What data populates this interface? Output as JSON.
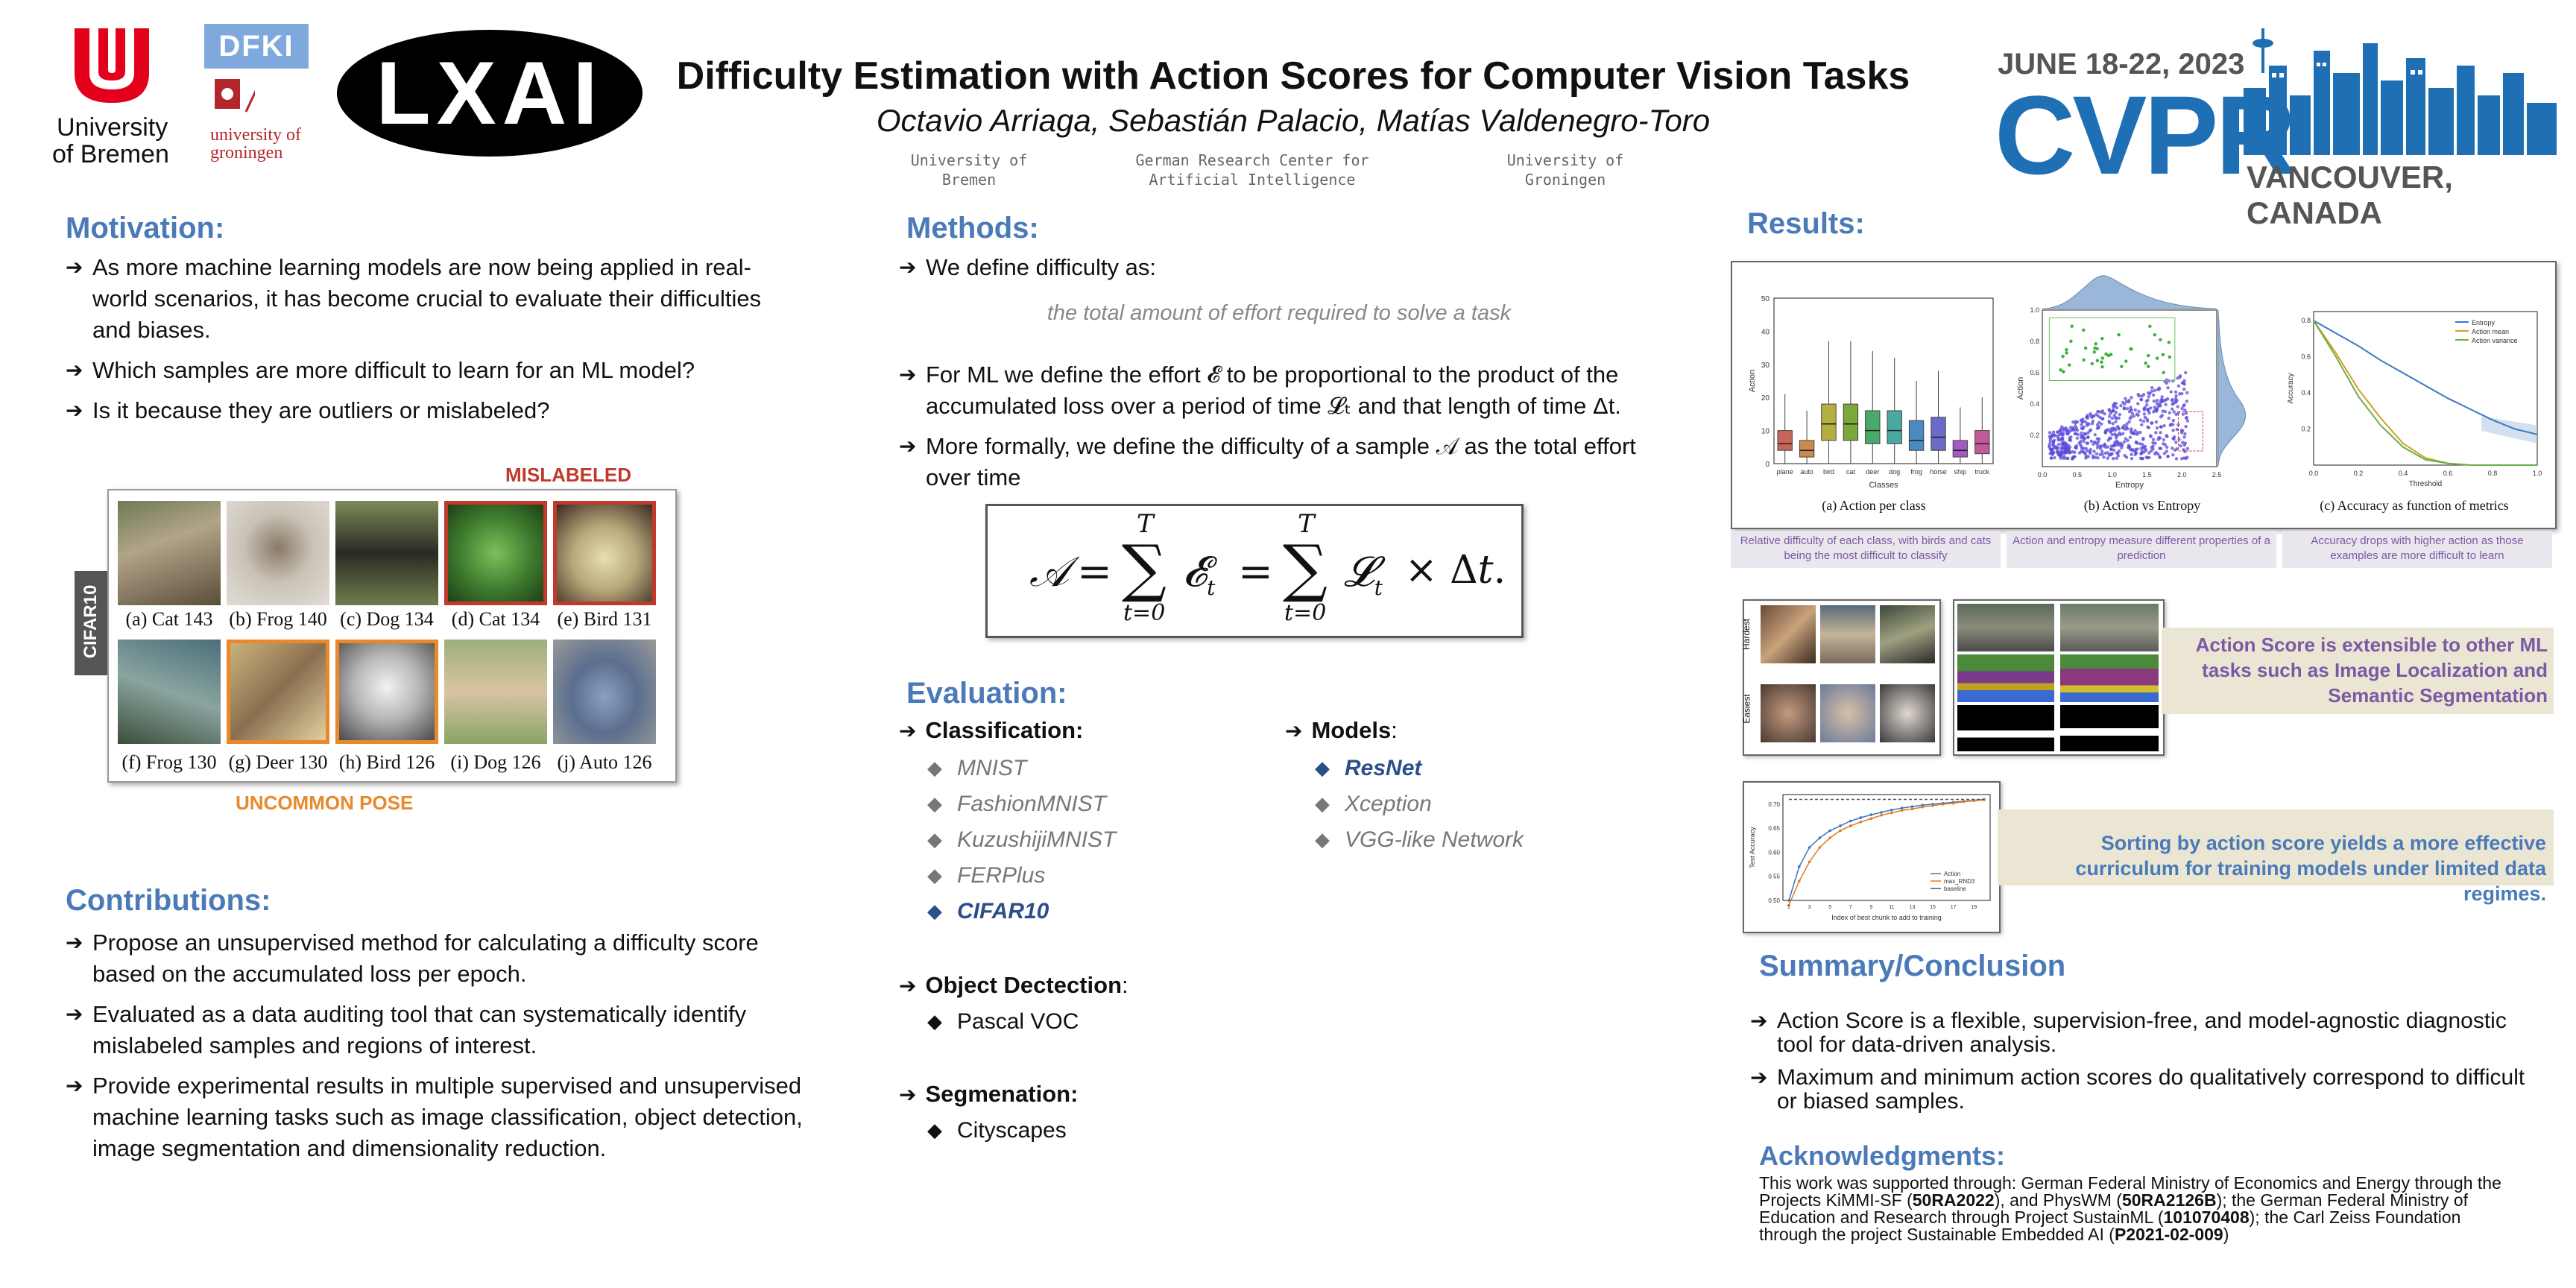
{
  "header": {
    "logos": {
      "bremen_line1": "University",
      "bremen_line2": "of Bremen",
      "groningen_line1": "university of",
      "groningen_line2": "groningen",
      "dfki": "DFKI",
      "lxai": "LXAI"
    },
    "title": "Difficulty Estimation with Action Scores for Computer Vision Tasks",
    "authors": "Octavio Arriaga, Sebastián Palacio, Matías Valdenegro-Toro",
    "affiliations": [
      {
        "line1": "University of",
        "line2": "Bremen"
      },
      {
        "line1": "German Research Center for",
        "line2": "Artificial Intelligence"
      },
      {
        "line1": "University of",
        "line2": "Groningen"
      }
    ],
    "cvpr": {
      "dates": "JUNE 18-22, 2023",
      "name": "CVPR",
      "location": "VANCOUVER, CANADA"
    }
  },
  "motivation": {
    "heading": "Motivation:",
    "bullets": [
      "As more machine learning models are now being applied in real-world scenarios, it has become crucial to evaluate their difficulties and biases.",
      "Which samples are more difficult to learn for an ML model?",
      "Is it because they are outliers or mislabeled?"
    ]
  },
  "cifar_figure": {
    "top_label": "MISLABELED",
    "bottom_label": "UNCOMMON POSE",
    "side_label": "CIFAR10",
    "captions": [
      "(a) Cat 143",
      "(b) Frog 140",
      "(c) Dog 134",
      "(d) Cat 134",
      "(e) Bird 131",
      "(f) Frog 130",
      "(g) Deer 130",
      "(h) Bird 126",
      "(i) Dog 126",
      "(j) Auto 126"
    ]
  },
  "contributions": {
    "heading": "Contributions:",
    "bullets": [
      "Propose an unsupervised method for calculating a difficulty score based on the accumulated loss per epoch.",
      "Evaluated as a data auditing tool that can systematically identify mislabeled samples and regions of interest.",
      "Provide experimental results in multiple supervised and unsupervised machine learning tasks such as image classification, object detection, image segmentation and dimensionality reduction."
    ]
  },
  "methods": {
    "heading": "Methods:",
    "b1": "We define difficulty as:",
    "definition": "the total amount of effort required to solve a task",
    "b2": "For ML we define the effort 𝓔 to be proportional to the product of the accumulated loss over a period of time 𝓛ₜ and that length of time Δt.",
    "b3": "More formally, we define the difficulty of a sample 𝒜 as the total effort over time"
  },
  "evaluation": {
    "heading": "Evaluation:",
    "classification_label": "Classification:",
    "classification": [
      "MNIST",
      "FashionMNIST",
      "KuzushijiMNIST",
      "FERPlus",
      "CIFAR10"
    ],
    "models_label": "Models",
    "models_colon": ":",
    "models": [
      "ResNet",
      "Xception",
      "VGG-like Network"
    ],
    "detection_label": "Object Dectection",
    "detection_colon": ":",
    "detection": [
      "Pascal VOC"
    ],
    "segmentation_label": "Segmenation:",
    "segmentation": [
      "Cityscapes"
    ]
  },
  "results": {
    "heading": "Results:",
    "panel_captions": [
      "(a) Action per class",
      "(b) Action vs Entropy",
      "(c) Accuracy as function of metrics"
    ],
    "notes": [
      "Relative difficulty of each class, with birds and cats being the most difficult to classify",
      "Action and entropy measure different properties of a prediction",
      "Accuracy drops with higher action as those examples are more difficult to learn"
    ],
    "extensible": "Action Score is extensible to other ML tasks such as Image Localization and Semantic Segmentation",
    "curriculum": "Sorting by action score yields a more effective curriculum for training models under limited data regimes.",
    "mini_labels": {
      "action": "Action",
      "classes": "Classes",
      "entropy": "Entropy",
      "accuracy": "Accuracy",
      "threshold": "Threshold",
      "test_accuracy": "Test Accuracy",
      "chunk_axis": "Index of best chunk to add to training",
      "hardest": "Hardest",
      "easiest": "Easiest"
    },
    "legend_c": [
      "Entropy",
      "Action mean",
      "Action variance"
    ],
    "legend_d": [
      "Action",
      "max_RND3",
      "baseline"
    ]
  },
  "summary": {
    "heading": "Summary/Conclusion",
    "bullets": [
      "Action Score is a flexible, supervision-free, and model-agnostic diagnostic tool for data-driven analysis.",
      "Maximum and minimum action scores do qualitatively correspond to difficult or biased samples."
    ]
  },
  "ack": {
    "heading": "Acknowledgments:",
    "t1": "This work was supported through: German Federal Ministry of Economics and Energy through the Projects KiMMI-SF (",
    "c1": "50RA2022",
    "t2": "), and PhysWM (",
    "c2": "50RA2126B",
    "t3": "); the German Federal Ministry of Education and Research through Project SustainML (",
    "c3": "101070408",
    "t4": "); the Carl Zeiss Foundation through the project Sustainable Embedded AI (",
    "c4": "P2021-02-009",
    "t5": ")"
  },
  "colors": {
    "heading": "#4a7ab8",
    "mislabeled": "#c0392b",
    "uncommon": "#e8892b",
    "lavender": "#7a5aa5",
    "cvpr_blue": "#1f6fb5"
  },
  "chart_data": [
    {
      "type": "box",
      "title": "(a) Action per class",
      "xlabel": "Classes",
      "ylabel": "Action",
      "categories": [
        "plane",
        "auto",
        "bird",
        "cat",
        "deer",
        "dog",
        "frog",
        "horse",
        "ship",
        "truck"
      ],
      "ylim": [
        0,
        50
      ],
      "median": [
        6,
        4,
        12,
        12,
        10,
        10,
        7,
        8,
        4,
        6
      ],
      "q1": [
        4,
        2,
        7,
        7,
        6,
        6,
        4,
        4,
        2,
        3
      ],
      "q3": [
        10,
        7,
        18,
        18,
        16,
        16,
        13,
        14,
        7,
        10
      ],
      "whisker_low": [
        0,
        0,
        0,
        0,
        0,
        0,
        0,
        0,
        0,
        0
      ],
      "whisker_high": [
        21,
        16,
        37,
        37,
        34,
        32,
        25,
        28,
        17,
        20
      ]
    },
    {
      "type": "scatter",
      "title": "(b) Action vs Entropy",
      "xlabel": "Entropy",
      "ylabel": "Action",
      "xlim": [
        0,
        2.5
      ],
      "ylim": [
        0,
        1
      ]
    },
    {
      "type": "line",
      "title": "(c) Accuracy as function of metrics",
      "xlabel": "Threshold",
      "ylabel": "Accuracy",
      "x": [
        0.0,
        0.1,
        0.2,
        0.3,
        0.4,
        0.5,
        0.6,
        0.7,
        0.8,
        0.9,
        1.0
      ],
      "series": [
        {
          "name": "Entropy",
          "values": [
            0.8,
            0.73,
            0.66,
            0.58,
            0.51,
            0.44,
            0.37,
            0.31,
            0.25,
            0.2,
            0.17
          ]
        },
        {
          "name": "Action mean",
          "values": [
            0.8,
            0.62,
            0.42,
            0.26,
            0.12,
            0.04,
            0.01,
            0.0,
            0.0,
            0.0,
            0.0
          ]
        },
        {
          "name": "Action variance",
          "values": [
            0.8,
            0.6,
            0.38,
            0.22,
            0.1,
            0.03,
            0.01,
            0.0,
            0.0,
            0.0,
            0.0
          ]
        }
      ],
      "ylim": [
        0,
        0.85
      ]
    },
    {
      "type": "line",
      "xlabel": "Index of best chunk to add to training",
      "ylabel": "Test Accuracy",
      "ylim": [
        0.5,
        0.72
      ],
      "x": [
        1,
        2,
        3,
        4,
        5,
        6,
        7,
        8,
        9,
        10,
        11,
        12,
        13,
        14,
        15,
        16,
        17,
        18,
        19,
        20
      ],
      "series": [
        {
          "name": "Action",
          "values": [
            0.5,
            0.57,
            0.61,
            0.63,
            0.645,
            0.655,
            0.665,
            0.672,
            0.678,
            0.683,
            0.688,
            0.692,
            0.695,
            0.698,
            0.7,
            0.702,
            0.704,
            0.706,
            0.708,
            0.71
          ]
        },
        {
          "name": "max_RND3",
          "values": [
            0.49,
            0.54,
            0.58,
            0.61,
            0.63,
            0.645,
            0.655,
            0.663,
            0.67,
            0.677,
            0.682,
            0.687,
            0.69,
            0.694,
            0.697,
            0.7,
            0.702,
            0.705,
            0.707,
            0.709
          ]
        },
        {
          "name": "baseline",
          "values": [
            0.71,
            0.71,
            0.71,
            0.71,
            0.71,
            0.71,
            0.71,
            0.71,
            0.71,
            0.71,
            0.71,
            0.71,
            0.71,
            0.71,
            0.71,
            0.71,
            0.71,
            0.71,
            0.71,
            0.71
          ]
        }
      ]
    }
  ]
}
